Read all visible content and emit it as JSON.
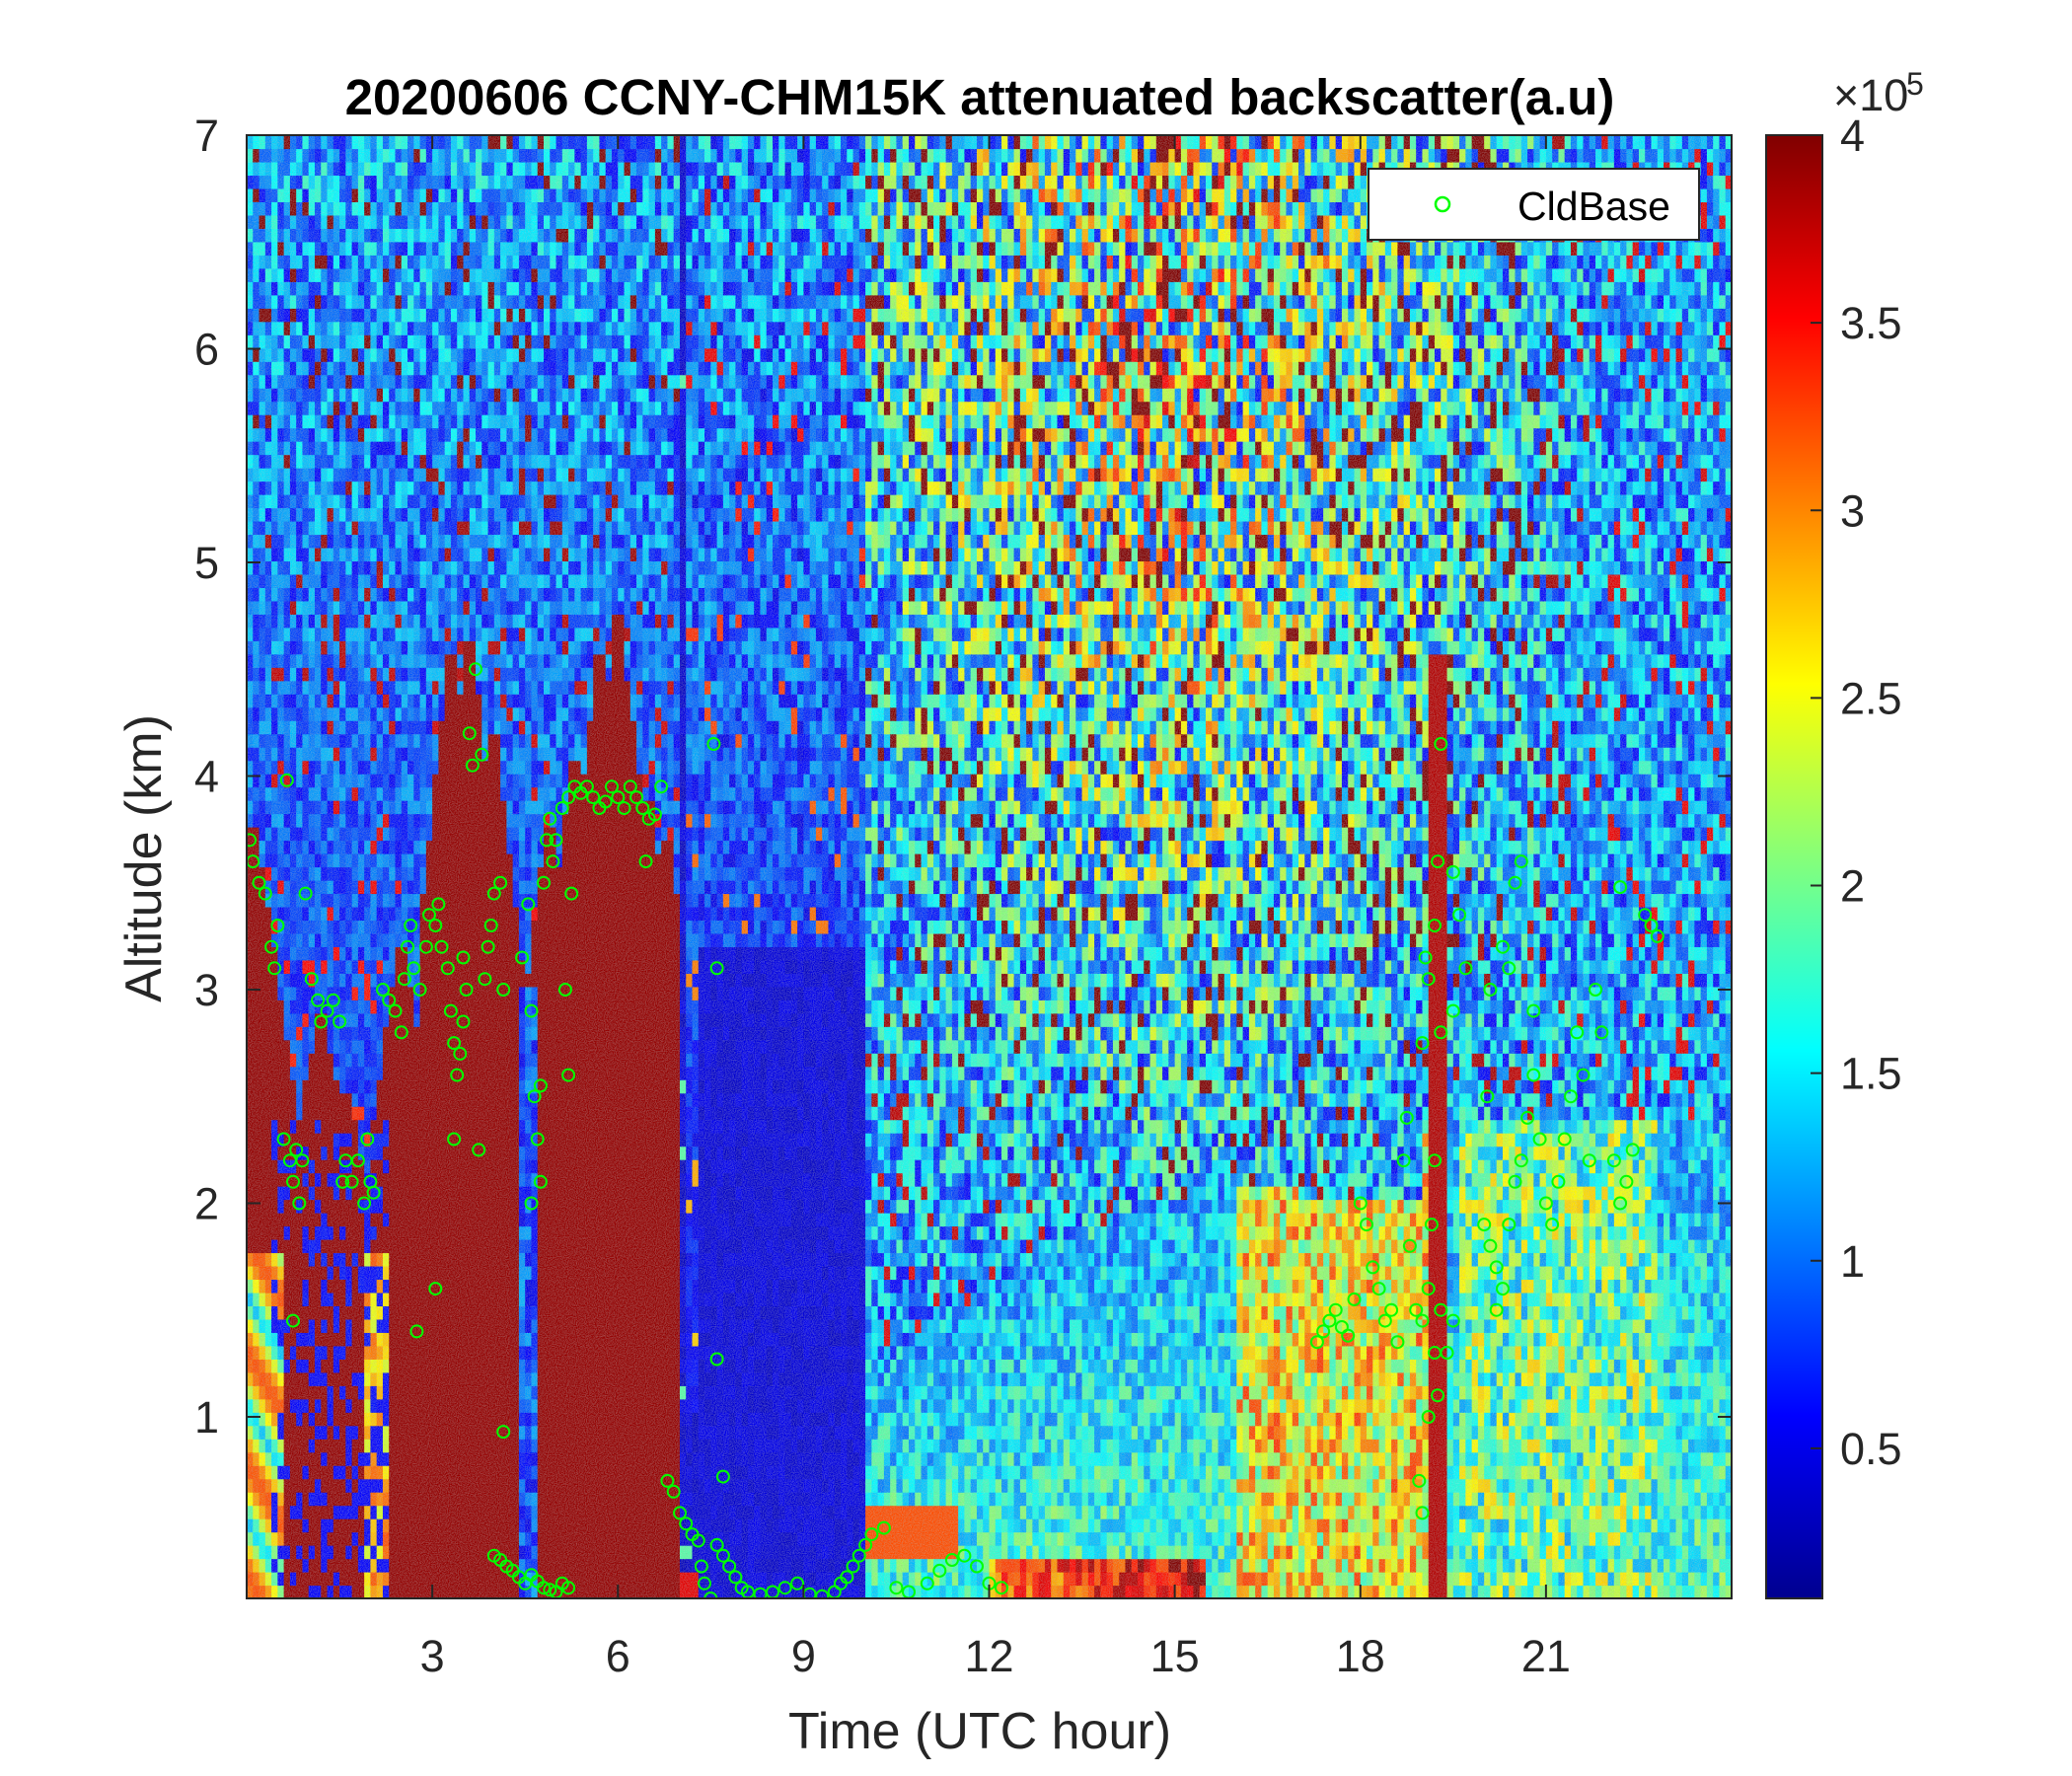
{
  "chart_data": {
    "type": "heatmap",
    "title": "20200606 CCNY-CHM15K attenuated backscatter(a.u)",
    "xlabel": "Time (UTC hour)",
    "ylabel": "Altitude (km)",
    "xlim": [
      0,
      24
    ],
    "ylim": [
      0.15,
      7
    ],
    "xticks": [
      3,
      6,
      9,
      12,
      15,
      18,
      21
    ],
    "yticks": [
      1,
      2,
      3,
      4,
      5,
      6,
      7
    ],
    "colorbar": {
      "colormap": "jet",
      "range": [
        10000,
        400000
      ],
      "ticks": [
        0.5,
        1,
        1.5,
        2,
        2.5,
        3,
        3.5,
        4
      ],
      "exponent_label": "×10",
      "exponent": "5"
    },
    "legend": {
      "entries": [
        "CldBase"
      ],
      "placement": "top-right",
      "marker": "circle",
      "color": "#00ff00"
    },
    "series": [
      {
        "name": "CldBase",
        "marker": "o",
        "points": [
          [
            0.05,
            3.7
          ],
          [
            0.1,
            3.6
          ],
          [
            0.2,
            3.5
          ],
          [
            0.3,
            3.45
          ],
          [
            0.4,
            3.2
          ],
          [
            0.45,
            3.1
          ],
          [
            0.5,
            3.3
          ],
          [
            0.6,
            2.3
          ],
          [
            0.7,
            2.2
          ],
          [
            0.75,
            2.1
          ],
          [
            0.8,
            2.25
          ],
          [
            0.85,
            2.0
          ],
          [
            0.9,
            2.2
          ],
          [
            0.65,
            3.98
          ],
          [
            0.75,
            1.45
          ],
          [
            0.95,
            3.45
          ],
          [
            1.05,
            3.05
          ],
          [
            1.15,
            2.95
          ],
          [
            1.2,
            2.85
          ],
          [
            1.3,
            2.9
          ],
          [
            1.4,
            2.95
          ],
          [
            1.5,
            2.85
          ],
          [
            1.55,
            2.1
          ],
          [
            1.6,
            2.2
          ],
          [
            1.7,
            2.1
          ],
          [
            1.8,
            2.2
          ],
          [
            1.9,
            2.0
          ],
          [
            2.0,
            2.1
          ],
          [
            2.05,
            2.05
          ],
          [
            1.95,
            2.3
          ],
          [
            2.2,
            3.0
          ],
          [
            2.3,
            2.95
          ],
          [
            2.4,
            2.9
          ],
          [
            2.5,
            2.8
          ],
          [
            2.55,
            3.05
          ],
          [
            2.6,
            3.2
          ],
          [
            2.65,
            3.3
          ],
          [
            2.7,
            3.1
          ],
          [
            2.8,
            3.0
          ],
          [
            2.9,
            3.2
          ],
          [
            2.95,
            3.35
          ],
          [
            3.05,
            3.3
          ],
          [
            3.1,
            3.4
          ],
          [
            3.15,
            3.2
          ],
          [
            3.25,
            3.1
          ],
          [
            3.3,
            2.9
          ],
          [
            3.35,
            2.75
          ],
          [
            3.4,
            2.6
          ],
          [
            3.45,
            2.7
          ],
          [
            3.5,
            2.85
          ],
          [
            3.55,
            3.0
          ],
          [
            3.6,
            4.2
          ],
          [
            3.65,
            4.05
          ],
          [
            3.7,
            4.5
          ],
          [
            3.8,
            4.1
          ],
          [
            3.85,
            3.05
          ],
          [
            3.9,
            3.2
          ],
          [
            3.95,
            3.3
          ],
          [
            4.0,
            3.45
          ],
          [
            4.1,
            3.5
          ],
          [
            4.15,
            3.0
          ],
          [
            3.35,
            2.3
          ],
          [
            3.75,
            2.25
          ],
          [
            2.75,
            1.4
          ],
          [
            3.05,
            1.6
          ],
          [
            3.5,
            3.15
          ],
          [
            4.15,
            0.93
          ],
          [
            4.0,
            0.35
          ],
          [
            4.1,
            0.33
          ],
          [
            4.2,
            0.3
          ],
          [
            4.3,
            0.28
          ],
          [
            4.4,
            0.25
          ],
          [
            4.5,
            0.22
          ],
          [
            4.6,
            0.26
          ],
          [
            4.7,
            0.23
          ],
          [
            4.8,
            0.2
          ],
          [
            4.9,
            0.19
          ],
          [
            5.0,
            0.18
          ],
          [
            5.1,
            0.22
          ],
          [
            5.2,
            0.2
          ],
          [
            4.45,
            3.15
          ],
          [
            4.55,
            3.4
          ],
          [
            4.6,
            2.9
          ],
          [
            4.65,
            2.5
          ],
          [
            4.7,
            2.3
          ],
          [
            4.75,
            2.1
          ],
          [
            4.8,
            3.5
          ],
          [
            4.85,
            3.7
          ],
          [
            4.9,
            3.8
          ],
          [
            4.95,
            3.6
          ],
          [
            5.0,
            3.7
          ],
          [
            5.1,
            3.85
          ],
          [
            5.2,
            3.9
          ],
          [
            5.3,
            3.95
          ],
          [
            5.4,
            3.92
          ],
          [
            5.5,
            3.95
          ],
          [
            5.6,
            3.9
          ],
          [
            5.7,
            3.85
          ],
          [
            5.8,
            3.88
          ],
          [
            5.9,
            3.95
          ],
          [
            6.0,
            3.9
          ],
          [
            6.1,
            3.85
          ],
          [
            6.2,
            3.95
          ],
          [
            6.3,
            3.9
          ],
          [
            6.4,
            3.85
          ],
          [
            6.5,
            3.8
          ],
          [
            6.6,
            3.82
          ],
          [
            6.7,
            3.95
          ],
          [
            6.45,
            3.6
          ],
          [
            5.15,
            3.0
          ],
          [
            5.2,
            2.6
          ],
          [
            5.25,
            3.45
          ],
          [
            4.6,
            2.0
          ],
          [
            4.75,
            2.55
          ],
          [
            6.8,
            0.7
          ],
          [
            6.9,
            0.65
          ],
          [
            7.0,
            0.55
          ],
          [
            7.1,
            0.5
          ],
          [
            7.2,
            0.45
          ],
          [
            7.3,
            0.42
          ],
          [
            7.35,
            0.3
          ],
          [
            7.4,
            0.22
          ],
          [
            7.5,
            0.15
          ],
          [
            7.6,
            0.4
          ],
          [
            7.7,
            0.35
          ],
          [
            7.8,
            0.3
          ],
          [
            7.6,
            1.27
          ],
          [
            7.6,
            3.1
          ],
          [
            7.55,
            4.15
          ],
          [
            7.7,
            0.72
          ],
          [
            7.9,
            0.25
          ],
          [
            8.0,
            0.2
          ],
          [
            8.1,
            0.18
          ],
          [
            8.3,
            0.17
          ],
          [
            8.5,
            0.18
          ],
          [
            8.7,
            0.2
          ],
          [
            8.9,
            0.22
          ],
          [
            9.1,
            0.17
          ],
          [
            9.3,
            0.16
          ],
          [
            9.5,
            0.18
          ],
          [
            9.6,
            0.22
          ],
          [
            9.7,
            0.25
          ],
          [
            9.8,
            0.3
          ],
          [
            9.9,
            0.35
          ],
          [
            10.0,
            0.4
          ],
          [
            10.1,
            0.45
          ],
          [
            10.3,
            0.48
          ],
          [
            10.5,
            0.2
          ],
          [
            10.7,
            0.18
          ],
          [
            11.0,
            0.22
          ],
          [
            11.2,
            0.28
          ],
          [
            11.4,
            0.33
          ],
          [
            11.6,
            0.35
          ],
          [
            11.8,
            0.3
          ],
          [
            12.0,
            0.22
          ],
          [
            12.2,
            0.2
          ],
          [
            17.3,
            1.35
          ],
          [
            17.4,
            1.4
          ],
          [
            17.5,
            1.45
          ],
          [
            17.6,
            1.5
          ],
          [
            17.7,
            1.42
          ],
          [
            17.8,
            1.38
          ],
          [
            17.9,
            1.55
          ],
          [
            18.0,
            2.0
          ],
          [
            18.1,
            1.9
          ],
          [
            18.2,
            1.7
          ],
          [
            18.3,
            1.6
          ],
          [
            18.4,
            1.45
          ],
          [
            18.5,
            1.5
          ],
          [
            18.6,
            1.35
          ],
          [
            18.7,
            2.2
          ],
          [
            18.75,
            2.4
          ],
          [
            18.8,
            1.8
          ],
          [
            18.9,
            1.5
          ],
          [
            19.0,
            1.45
          ],
          [
            19.1,
            1.6
          ],
          [
            19.2,
            1.3
          ],
          [
            19.25,
            1.1
          ],
          [
            18.95,
            0.7
          ],
          [
            19.0,
            0.55
          ],
          [
            19.1,
            1.0
          ],
          [
            19.1,
            3.05
          ],
          [
            19.2,
            3.3
          ],
          [
            19.25,
            3.6
          ],
          [
            19.3,
            4.15
          ],
          [
            19.3,
            2.8
          ],
          [
            19.0,
            2.75
          ],
          [
            19.05,
            3.15
          ],
          [
            19.15,
            1.9
          ],
          [
            19.2,
            2.2
          ],
          [
            19.3,
            1.5
          ],
          [
            19.4,
            1.3
          ],
          [
            19.5,
            1.45
          ],
          [
            19.5,
            3.55
          ],
          [
            19.6,
            3.35
          ],
          [
            19.7,
            3.1
          ],
          [
            19.5,
            2.9
          ],
          [
            20.0,
            1.9
          ],
          [
            20.1,
            1.8
          ],
          [
            20.2,
            1.7
          ],
          [
            20.3,
            1.6
          ],
          [
            20.2,
            1.5
          ],
          [
            20.4,
            1.9
          ],
          [
            20.5,
            2.1
          ],
          [
            20.6,
            2.2
          ],
          [
            20.7,
            2.4
          ],
          [
            20.8,
            2.6
          ],
          [
            20.9,
            2.3
          ],
          [
            21.0,
            2.0
          ],
          [
            21.1,
            1.9
          ],
          [
            21.2,
            2.1
          ],
          [
            21.3,
            2.3
          ],
          [
            21.4,
            2.5
          ],
          [
            21.5,
            2.8
          ],
          [
            21.6,
            2.6
          ],
          [
            21.7,
            2.2
          ],
          [
            21.8,
            3.0
          ],
          [
            21.9,
            2.8
          ],
          [
            20.3,
            3.2
          ],
          [
            20.4,
            3.1
          ],
          [
            20.5,
            3.5
          ],
          [
            20.6,
            3.6
          ],
          [
            20.8,
            2.9
          ],
          [
            20.1,
            3.0
          ],
          [
            20.05,
            2.5
          ],
          [
            22.1,
            2.2
          ],
          [
            22.2,
            2.0
          ],
          [
            22.3,
            2.1
          ],
          [
            22.4,
            2.25
          ],
          [
            22.2,
            3.48
          ],
          [
            22.6,
            3.35
          ],
          [
            22.7,
            3.3
          ],
          [
            22.8,
            3.25
          ]
        ]
      }
    ]
  }
}
